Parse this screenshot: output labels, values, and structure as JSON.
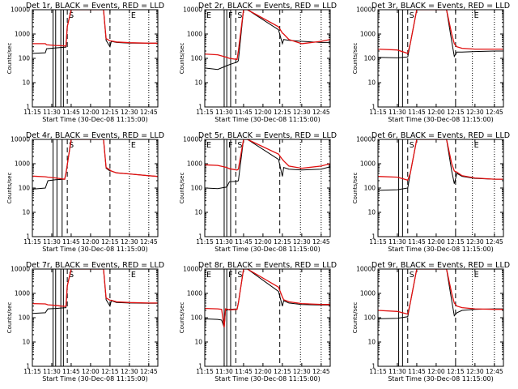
{
  "figure": {
    "width": 640,
    "height": 480
  },
  "chart_data": {
    "type": "line",
    "x_axis": {
      "label": "Start Time (30-Dec-08 11:15:00)",
      "range": [
        "11:15",
        "12:52"
      ],
      "ticks": [
        "11:15",
        "11:30",
        "11:45",
        "12:00",
        "12:15",
        "12:30",
        "12:45"
      ]
    },
    "y_axis": {
      "label": "Counts/sec",
      "scale": "log",
      "range": [
        1,
        10000
      ],
      "ticks": [
        "1",
        "10",
        "100",
        "1000",
        "10000"
      ]
    },
    "series_colors": {
      "events": "#000000",
      "lld": "#e01010"
    },
    "panels": [
      {
        "title": "Det 1r, BLACK = Events, RED = LLD",
        "x": [
          "11:15",
          "11:25",
          "11:26",
          "11:33",
          "11:37",
          "11:41",
          "11:42",
          "11:45",
          "11:48",
          "12:08",
          "12:10",
          "12:12",
          "12:15",
          "12:16",
          "12:20",
          "12:30",
          "12:45",
          "12:52"
        ],
        "events": [
          160,
          170,
          250,
          270,
          280,
          290,
          2000,
          10000,
          10000,
          10000,
          10000,
          550,
          300,
          500,
          450,
          420,
          420,
          420
        ],
        "lld": [
          400,
          400,
          360,
          340,
          330,
          320,
          2000,
          10000,
          10000,
          10000,
          10000,
          650,
          520,
          520,
          470,
          440,
          420,
          420
        ]
      },
      {
        "title": "Det 2r, BLACK = Events, RED = LLD",
        "x": [
          "11:15",
          "11:25",
          "11:32",
          "11:34",
          "11:40",
          "11:41",
          "11:45",
          "11:48",
          "12:12",
          "12:15",
          "12:16",
          "12:20",
          "12:30",
          "12:45",
          "12:52"
        ],
        "events": [
          40,
          35,
          50,
          55,
          70,
          80,
          10000,
          10000,
          1500,
          400,
          600,
          550,
          500,
          450,
          450
        ],
        "lld": [
          150,
          140,
          110,
          100,
          90,
          200,
          10000,
          10000,
          2000,
          1100,
          1000,
          600,
          400,
          500,
          600
        ]
      },
      {
        "title": "Det 3r, BLACK = Events, RED = LLD",
        "x": [
          "11:15",
          "11:30",
          "11:38",
          "11:40",
          "11:45",
          "11:48",
          "12:08",
          "12:12",
          "12:14",
          "12:16",
          "12:20",
          "12:30",
          "12:45",
          "12:52"
        ],
        "events": [
          110,
          105,
          115,
          400,
          10000,
          10000,
          10000,
          500,
          120,
          180,
          180,
          190,
          200,
          200
        ],
        "lld": [
          240,
          220,
          160,
          400,
          10000,
          10000,
          10000,
          1000,
          400,
          300,
          260,
          240,
          240,
          240
        ]
      },
      {
        "title": "Det 4r, BLACK = Events, RED = LLD",
        "x": [
          "11:15",
          "11:25",
          "11:27",
          "11:33",
          "11:40",
          "11:41",
          "11:45",
          "11:48",
          "12:08",
          "12:10",
          "12:12",
          "12:15",
          "12:16",
          "12:20",
          "12:30",
          "12:45",
          "12:52"
        ],
        "events": [
          90,
          100,
          200,
          220,
          230,
          400,
          10000,
          10000,
          10000,
          10000,
          650,
          500,
          500,
          420,
          380,
          320,
          300
        ],
        "lld": [
          310,
          290,
          280,
          260,
          230,
          400,
          10000,
          10000,
          10000,
          10000,
          700,
          550,
          500,
          420,
          380,
          320,
          300
        ]
      },
      {
        "title": "Det 5r, BLACK = Events, RED = LLD",
        "x": [
          "11:15",
          "11:25",
          "11:32",
          "11:34",
          "11:40",
          "11:41",
          "11:45",
          "11:48",
          "12:12",
          "12:15",
          "12:16",
          "12:20",
          "12:30",
          "12:45",
          "12:52"
        ],
        "events": [
          100,
          95,
          110,
          180,
          190,
          200,
          10000,
          10000,
          1500,
          300,
          700,
          600,
          550,
          600,
          750
        ],
        "lld": [
          900,
          850,
          700,
          620,
          550,
          600,
          10000,
          10000,
          2500,
          1500,
          1300,
          800,
          650,
          800,
          1000
        ]
      },
      {
        "title": "Det 6r, BLACK = Events, RED = LLD",
        "x": [
          "11:15",
          "11:30",
          "11:38",
          "11:40",
          "11:45",
          "11:48",
          "12:08",
          "12:12",
          "12:14",
          "12:16",
          "12:20",
          "12:30",
          "12:45",
          "12:52"
        ],
        "events": [
          80,
          85,
          100,
          400,
          10000,
          10000,
          10000,
          500,
          150,
          400,
          300,
          250,
          230,
          230
        ],
        "lld": [
          300,
          280,
          210,
          400,
          10000,
          10000,
          10000,
          1000,
          500,
          450,
          320,
          260,
          230,
          230
        ]
      },
      {
        "title": "Det 7r, BLACK = Events, RED = LLD",
        "x": [
          "11:15",
          "11:25",
          "11:27",
          "11:33",
          "11:37",
          "11:41",
          "11:42",
          "11:45",
          "11:48",
          "12:08",
          "12:10",
          "12:12",
          "12:15",
          "12:16",
          "12:20",
          "12:30",
          "12:45",
          "12:52"
        ],
        "events": [
          150,
          160,
          230,
          240,
          250,
          260,
          2000,
          10000,
          10000,
          10000,
          10000,
          550,
          300,
          500,
          420,
          400,
          390,
          390
        ],
        "lld": [
          380,
          370,
          340,
          320,
          300,
          290,
          2000,
          10000,
          10000,
          10000,
          10000,
          650,
          520,
          520,
          450,
          420,
          400,
          400
        ]
      },
      {
        "title": "Det 8r, BLACK = Events, RED = LLD",
        "x": [
          "11:15",
          "11:25",
          "11:28",
          "11:30",
          "11:31",
          "11:33",
          "11:34",
          "11:40",
          "11:41",
          "11:45",
          "11:48",
          "12:12",
          "12:15",
          "12:16",
          "12:20",
          "12:30",
          "12:45",
          "12:52"
        ],
        "events": [
          90,
          85,
          80,
          40,
          200,
          210,
          220,
          230,
          400,
          10000,
          10000,
          1200,
          300,
          500,
          400,
          350,
          330,
          330
        ],
        "lld": [
          240,
          230,
          220,
          40,
          230,
          220,
          210,
          220,
          400,
          10000,
          10000,
          1800,
          700,
          550,
          450,
          380,
          350,
          350
        ]
      },
      {
        "title": "Det 9r, BLACK = Events, RED = LLD",
        "x": [
          "11:15",
          "11:30",
          "11:38",
          "11:40",
          "11:45",
          "11:48",
          "12:08",
          "12:12",
          "12:14",
          "12:16",
          "12:20",
          "12:30",
          "12:45",
          "12:52"
        ],
        "events": [
          90,
          95,
          110,
          400,
          10000,
          10000,
          10000,
          500,
          120,
          160,
          200,
          220,
          230,
          230
        ],
        "lld": [
          200,
          180,
          140,
          400,
          10000,
          10000,
          10000,
          1000,
          400,
          300,
          260,
          230,
          220,
          220
        ]
      }
    ],
    "markers": [
      {
        "panels": [
          0,
          6
        ],
        "x": "11:31",
        "style": "solid",
        "label": ""
      },
      {
        "panels": [
          0,
          6
        ],
        "x": "11:33",
        "style": "solid",
        "label": ""
      },
      {
        "panels": [
          0,
          6
        ],
        "x": "11:37",
        "style": "solid",
        "label": ""
      },
      {
        "panels": [
          0,
          6
        ],
        "x": "11:39",
        "style": "solid",
        "label": ""
      },
      {
        "panels": [
          0,
          6
        ],
        "x": "11:42",
        "style": "dash",
        "label": "S"
      },
      {
        "panels": [
          0,
          6
        ],
        "x": "12:15",
        "style": "dash",
        "label": ""
      },
      {
        "panels": [
          0,
          6
        ],
        "x": "12:30",
        "style": "dot",
        "label": "E"
      },
      {
        "panels": [
          0,
          6
        ],
        "x": "12:45",
        "style": "dot",
        "label": ""
      },
      {
        "panels": [
          1,
          4,
          7
        ],
        "x": "11:15",
        "style": "solid",
        "label": "E"
      },
      {
        "panels": [
          1,
          4,
          7
        ],
        "x": "11:30",
        "style": "solid",
        "label": ""
      },
      {
        "panels": [
          1,
          4,
          7
        ],
        "x": "11:32",
        "style": "solid",
        "label": "F"
      },
      {
        "panels": [
          1,
          4,
          7
        ],
        "x": "11:35",
        "style": "solid",
        "label": ""
      },
      {
        "panels": [
          1,
          4,
          7
        ],
        "x": "11:39",
        "style": "dash",
        "label": "S"
      },
      {
        "panels": [
          1,
          4,
          7
        ],
        "x": "12:13",
        "style": "dash",
        "label": ""
      },
      {
        "panels": [
          1,
          4,
          7
        ],
        "x": "12:29",
        "style": "dot",
        "label": ""
      },
      {
        "panels": [
          1,
          4,
          7
        ],
        "x": "12:45",
        "style": "dot",
        "label": ""
      },
      {
        "panels": [
          2,
          5,
          8
        ],
        "x": "11:31",
        "style": "solid",
        "label": ""
      },
      {
        "panels": [
          2,
          5,
          8
        ],
        "x": "11:34",
        "style": "solid",
        "label": ""
      },
      {
        "panels": [
          2,
          5,
          8
        ],
        "x": "11:38",
        "style": "dash",
        "label": "S"
      },
      {
        "panels": [
          2,
          5,
          8
        ],
        "x": "12:15",
        "style": "dash",
        "label": ""
      },
      {
        "panels": [
          2,
          5,
          8
        ],
        "x": "12:28",
        "style": "dot",
        "label": "E"
      },
      {
        "panels": [
          2,
          5,
          8
        ],
        "x": "12:45",
        "style": "dot",
        "label": ""
      },
      {
        "panels": [
          3
        ],
        "x": "11:31",
        "style": "solid",
        "label": ""
      },
      {
        "panels": [
          3
        ],
        "x": "11:34",
        "style": "solid",
        "label": ""
      },
      {
        "panels": [
          3
        ],
        "x": "11:38",
        "style": "solid",
        "label": ""
      },
      {
        "panels": [
          3
        ],
        "x": "11:42",
        "style": "dash",
        "label": "S"
      },
      {
        "panels": [
          3
        ],
        "x": "12:15",
        "style": "dash",
        "label": ""
      },
      {
        "panels": [
          3
        ],
        "x": "12:30",
        "style": "dot",
        "label": "E"
      },
      {
        "panels": [
          3
        ],
        "x": "12:45",
        "style": "dot",
        "label": ""
      }
    ]
  }
}
